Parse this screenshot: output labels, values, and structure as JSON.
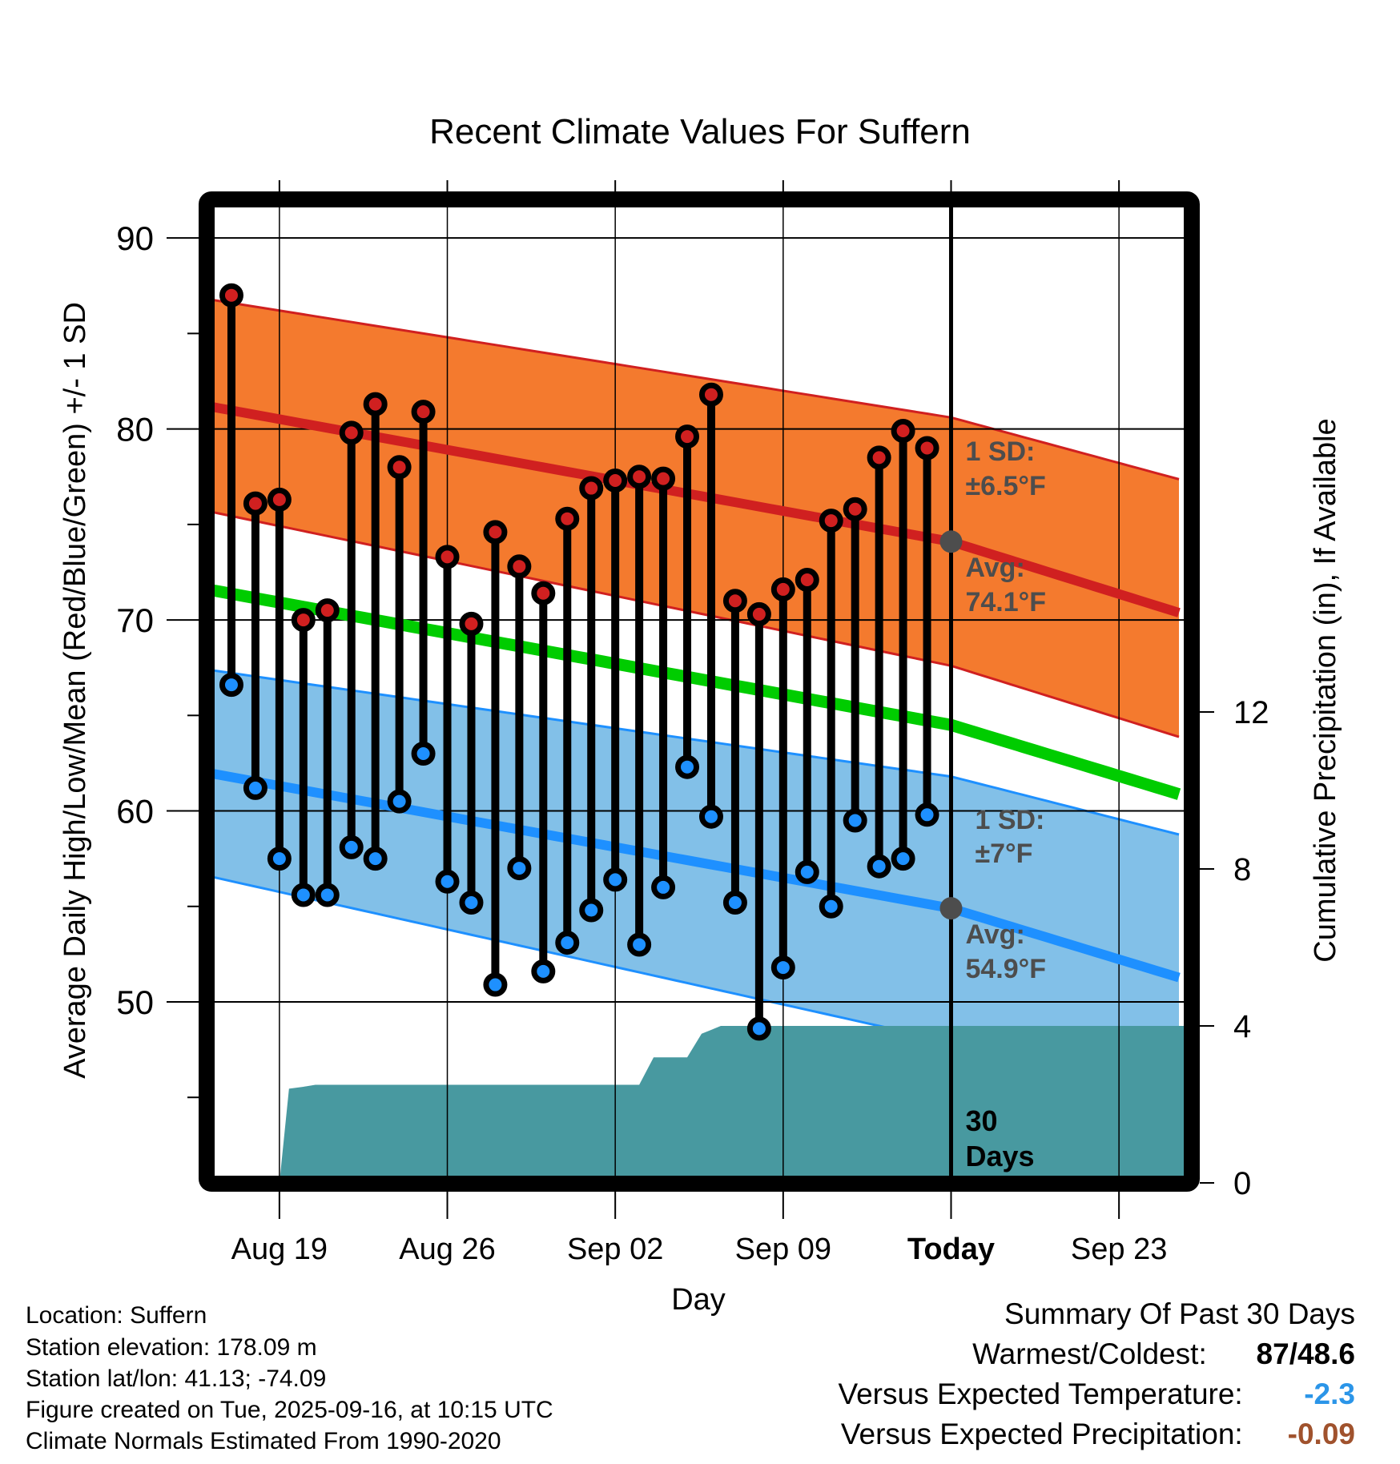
{
  "chart_data": {
    "type": "line",
    "title": "Recent Climate Values For Suffern",
    "xlabel": "Day",
    "ylabel": "Average Daily High/Low/Mean (Red/Blue/Green) +/- 1 SD",
    "y2label": "Cumulative Precipitation (in), If Available",
    "ylim": [
      40.9,
      91.6
    ],
    "y2lim": [
      0,
      12.0
    ],
    "yticks": [
      90,
      80,
      70,
      60,
      50
    ],
    "yminor_ticks": [
      85,
      75,
      65,
      55,
      45
    ],
    "y2ticks": [
      0,
      4,
      8,
      12
    ],
    "xlim_days": [
      -30.7,
      9.7
    ],
    "xticks": [
      {
        "day": -28,
        "label": "Aug 19",
        "bold": false
      },
      {
        "day": -21,
        "label": "Aug 26",
        "bold": false
      },
      {
        "day": -14,
        "label": "Sep 02",
        "bold": false
      },
      {
        "day": -7,
        "label": "Sep 09",
        "bold": false
      },
      {
        "day": 0,
        "label": "Today",
        "bold": true
      },
      {
        "day": 7,
        "label": "Sep 23",
        "bold": false
      }
    ],
    "grid": true,
    "today_marker_label": "30 Days",
    "observations": {
      "dates": [
        "Aug 17",
        "Aug 18",
        "Aug 19",
        "Aug 20",
        "Aug 21",
        "Aug 22",
        "Aug 23",
        "Aug 24",
        "Aug 25",
        "Aug 26",
        "Aug 27",
        "Aug 28",
        "Aug 29",
        "Aug 30",
        "Aug 31",
        "Sep 01",
        "Sep 02",
        "Sep 03",
        "Sep 04",
        "Sep 05",
        "Sep 06",
        "Sep 07",
        "Sep 08",
        "Sep 09",
        "Sep 10",
        "Sep 11",
        "Sep 12",
        "Sep 13",
        "Sep 14",
        "Sep 15"
      ],
      "day_offsets": [
        -30,
        -29,
        -28,
        -27,
        -26,
        -25,
        -24,
        -23,
        -22,
        -21,
        -20,
        -19,
        -18,
        -17,
        -16,
        -15,
        -14,
        -13,
        -12,
        -11,
        -10,
        -9,
        -8,
        -7,
        -6,
        -5,
        -4,
        -3,
        -2,
        -1
      ],
      "high": [
        87.0,
        76.1,
        76.3,
        70.0,
        70.5,
        79.8,
        81.3,
        78.0,
        80.9,
        73.3,
        69.8,
        74.6,
        72.8,
        71.4,
        75.3,
        76.9,
        77.3,
        77.5,
        77.4,
        79.6,
        81.8,
        71.0,
        70.3,
        71.6,
        72.1,
        75.2,
        75.8,
        78.5,
        79.9,
        79.0
      ],
      "low": [
        66.6,
        61.2,
        57.5,
        55.6,
        55.6,
        58.1,
        57.5,
        60.5,
        63.0,
        56.3,
        55.2,
        50.9,
        57.0,
        51.6,
        53.1,
        54.8,
        56.4,
        53.0,
        56.0,
        62.3,
        59.7,
        55.2,
        48.6,
        51.8,
        56.8,
        55.0,
        59.5,
        57.1,
        57.5,
        59.8
      ]
    },
    "normals": {
      "day_offsets": [
        -31,
        0,
        9.7
      ],
      "high_avg": [
        81.2,
        74.1,
        70.3
      ],
      "high_upper": [
        86.8,
        80.6,
        77.3
      ],
      "high_lower": [
        75.7,
        67.6,
        63.8
      ],
      "mean_avg": [
        71.6,
        64.5,
        60.8
      ],
      "low_avg": [
        62.0,
        54.9,
        51.2
      ],
      "low_upper": [
        67.4,
        61.8,
        58.7
      ],
      "low_lower": [
        56.6,
        47.9,
        44.2
      ]
    },
    "precipitation": {
      "day_offsets": [
        -28,
        -27.6,
        -27,
        -26.5,
        -13,
        -12.4,
        -11.5,
        -11,
        -10.4,
        -9.6,
        -9,
        9.7
      ],
      "cumulative_in": [
        0,
        2.4,
        2.45,
        2.5,
        2.5,
        3.2,
        3.2,
        3.2,
        3.8,
        4.0,
        4.0,
        4.0
      ]
    },
    "annotations": {
      "high_sd_label": "1 SD:",
      "high_sd_value": "±6.5°F",
      "high_avg_label": "Avg:",
      "high_avg_value": "74.1°F",
      "low_sd_label": "1 SD:",
      "low_sd_value": "±7°F",
      "low_avg_label": "Avg:",
      "low_avg_value": "54.9°F",
      "today_value_high": 74.1,
      "today_value_low": 54.9
    },
    "colors": {
      "high_band": "#f47a2e",
      "high_line": "#d02020",
      "mean_line": "#00cc00",
      "low_band": "#82c0e8",
      "low_line": "#1e90ff",
      "precip": "#4899a0",
      "high_dot": "#d02020",
      "low_dot": "#1e90ff",
      "annotation_text": "#4d4d4d",
      "today_dot": "#4d4d4d"
    }
  },
  "info": {
    "location": "Location: Suffern",
    "elevation": "Station elevation: 178.09 m",
    "latlon": "Station lat/lon: 41.13; -74.09",
    "created": "Figure created on Tue, 2025-09-16, at 10:15 UTC",
    "normals": "Climate Normals Estimated From 1990-2020"
  },
  "summary": {
    "title": "Summary Of Past 30 Days",
    "warmest_coldest_label": "Warmest/Coldest:",
    "warmest_coldest_value": "87/48.6",
    "temp_label": "Versus Expected Temperature:",
    "temp_value": "-2.3",
    "temp_color": "#2b95e8",
    "precip_label": "Versus Expected Precipitation:",
    "precip_value": "-0.09",
    "precip_color": "#a0522d"
  }
}
